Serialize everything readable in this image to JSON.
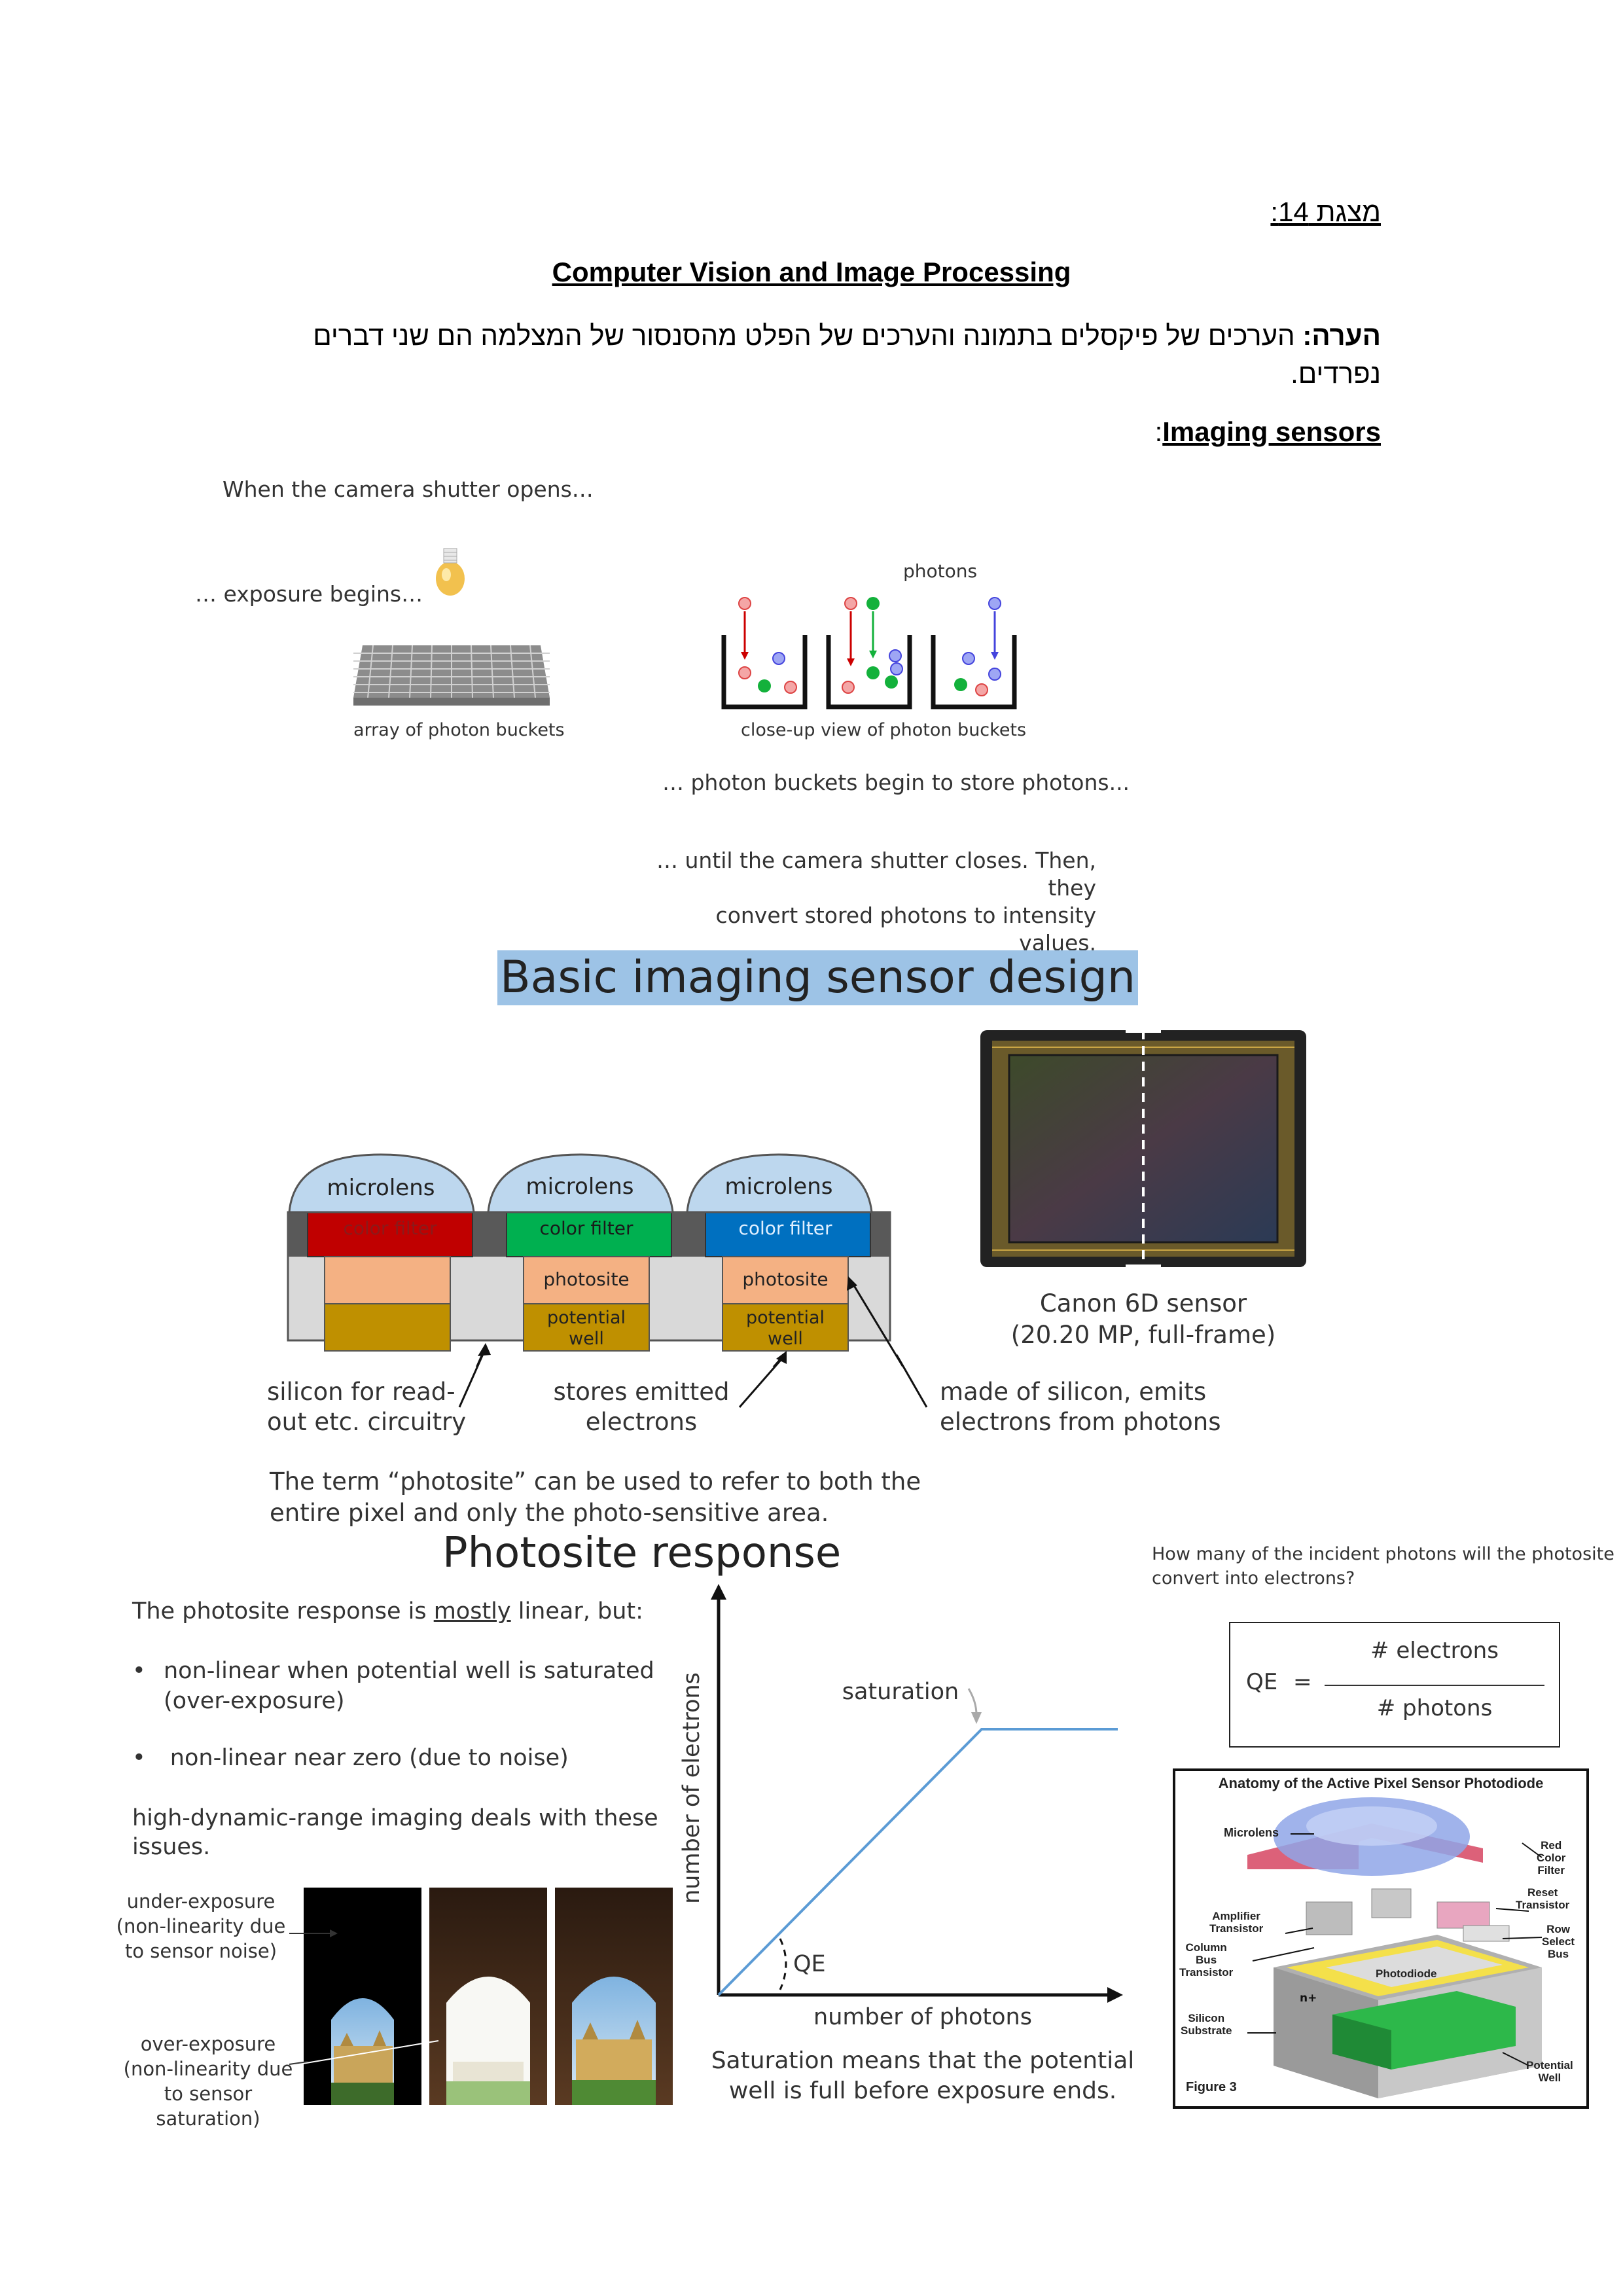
{
  "header": {
    "slide_label": "מצגת 14:",
    "course_title": "Computer Vision and Image Processing",
    "note_bold": "הערה:",
    "note_line1": " הערכים של פיקסלים בתמונה והערכים של הפלט מהסנסור של המצלמה הם שני דברים",
    "note_line2": "נפרדים.",
    "section_title": "Imaging sensors",
    "section_colon": ":"
  },
  "exposure_figure": {
    "shutter_opens": "When the camera shutter opens…",
    "exposure_begins": "… exposure begins…",
    "photons_label": "photons",
    "array_caption": "array of photon buckets",
    "closeup_caption": "close-up view of photon buckets",
    "buckets_store": "… photon buckets begin to store photons...",
    "until_line1": "… until the camera shutter closes. Then, they",
    "until_line2": "convert stored photons to intensity values."
  },
  "sensor_design": {
    "title": "Basic imaging sensor design",
    "microlens": [
      "microlens",
      "microlens",
      "microlens"
    ],
    "color_filter": [
      "color filter",
      "color filter",
      "color filter"
    ],
    "photosite": "photosite",
    "potential_well_1": "potential",
    "potential_well_2": "well",
    "silicon_label_1": "silicon for read-",
    "silicon_label_2": "out etc. circuitry",
    "stores_label_1": "stores emitted",
    "stores_label_2": "electrons",
    "made_label_1": "made of silicon, emits",
    "made_label_2": "electrons from photons",
    "canon_1": "Canon 6D sensor",
    "canon_2": "(20.20 MP, full-frame)",
    "term_1": "The term “photosite” can be used to refer to both the",
    "term_2": "entire pixel and only the photo-sensitive area.",
    "colors": {
      "red": "#c00000",
      "green": "#00b050",
      "blue": "#0070c0",
      "photosite": "#f4b183",
      "well": "#bf9000",
      "microlens": "#bdd7ee",
      "silicon": "#d9d9d9"
    }
  },
  "photosite_response": {
    "title": "Photosite response",
    "intro_pre": "The photosite response is ",
    "intro_u": "mostly",
    "intro_post": " linear, but:",
    "bullet_1a": "non-linear when potential well is saturated",
    "bullet_1b": "(over-exposure)",
    "bullet_2": "non-linear near zero (due to noise)",
    "hdr_1": "high-dynamic-range imaging deals with these",
    "hdr_2": "issues.",
    "under_1": "under-exposure",
    "under_2": "(non-linearity due",
    "under_3": "to sensor noise)",
    "over_1": "over-exposure",
    "over_2": "(non-linearity due",
    "over_3": "to sensor saturation)",
    "saturation": "saturation",
    "qe": "QE",
    "y_label": "number of electrons",
    "x_label": "number of photons",
    "sat_note_1": "Saturation means that the potential",
    "sat_note_2": "well is full before exposure ends.",
    "question_1": "How many of the incident photons will the photosite",
    "question_2": "convert into electrons?",
    "formula_qe": "QE",
    "formula_eq": "=",
    "formula_num": "# electrons",
    "formula_den": "# photons",
    "line_color": "#5b9bd5"
  },
  "anatomy": {
    "title": "Anatomy of the Active Pixel Sensor Photodiode",
    "microlens": "Microlens",
    "red_filter_1": "Red",
    "red_filter_2": "Color",
    "red_filter_3": "Filter",
    "reset_1": "Reset",
    "reset_2": "Transistor",
    "amp_1": "Amplifier",
    "amp_2": "Transistor",
    "row_1": "Row",
    "row_2": "Select",
    "row_3": "Bus",
    "column_1": "Column",
    "column_2": "Bus",
    "column_3": "Transistor",
    "photodiode": "Photodiode",
    "silicon_1": "Silicon",
    "silicon_2": "Substrate",
    "well_1": "Potential",
    "well_2": "Well",
    "figure": "Figure 3",
    "nplus": "n+"
  }
}
